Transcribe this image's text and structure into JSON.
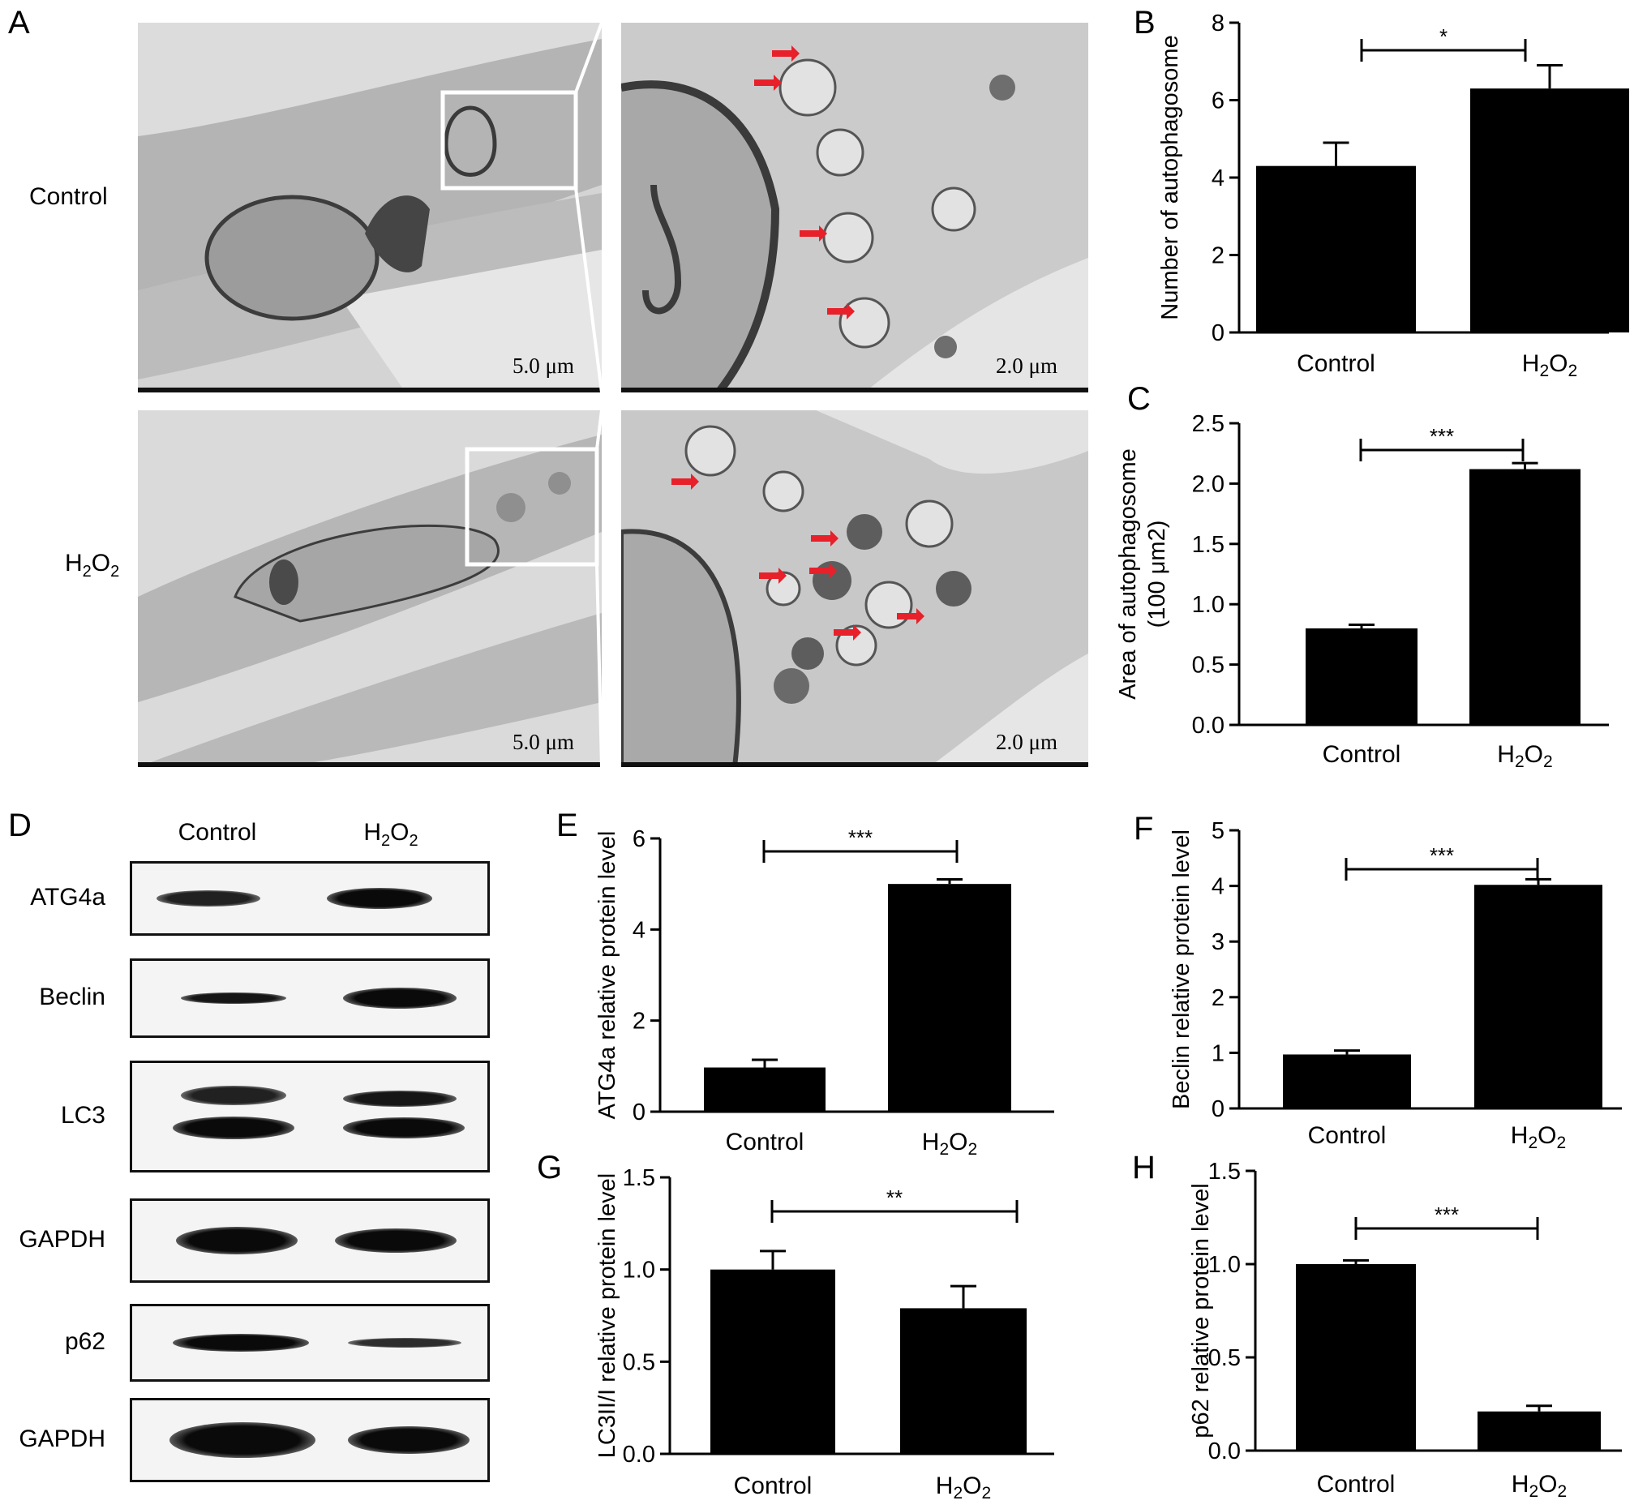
{
  "panels": {
    "A": "A",
    "B": "B",
    "C": "C",
    "D": "D",
    "E": "E",
    "F": "F",
    "G": "G",
    "H": "H"
  },
  "em": {
    "row_labels": [
      "Control",
      "H2O2"
    ],
    "scale_low": "5.0 μm",
    "scale_high": "2.0 μm",
    "arrow_color": "#e8202a"
  },
  "blot": {
    "col_labels": [
      "Control",
      "H2O2"
    ],
    "rows": [
      "ATG4a",
      "Beclin",
      "LC3",
      "GAPDH",
      "p62",
      "GAPDH"
    ]
  },
  "chart_data": [
    {
      "panel": "B",
      "type": "bar",
      "categories": [
        "Control",
        "H2O2"
      ],
      "values": [
        4.3,
        6.3
      ],
      "errors": [
        0.6,
        0.6
      ],
      "ylabel": [
        "Number of autophagosome"
      ],
      "ylim": [
        0,
        8
      ],
      "yticks": [
        "0",
        "2",
        "4",
        "6",
        "8"
      ],
      "significance": "*"
    },
    {
      "panel": "C",
      "type": "bar",
      "categories": [
        "Control",
        "H2O2"
      ],
      "values": [
        0.8,
        2.12
      ],
      "errors": [
        0.03,
        0.05
      ],
      "ylabel": [
        "Area of autophagosome",
        "(100 μm2)"
      ],
      "ylim": [
        0,
        2.5
      ],
      "yticks": [
        "0.0",
        "0.5",
        "1.0",
        "1.5",
        "2.0",
        "2.5"
      ],
      "significance": "***"
    },
    {
      "panel": "E",
      "type": "bar",
      "categories": [
        "Control",
        "H2O2"
      ],
      "values": [
        0.97,
        5.0
      ],
      "errors": [
        0.17,
        0.1
      ],
      "ylabel": [
        "ATG4a relative protein level"
      ],
      "ylim": [
        0,
        6
      ],
      "yticks": [
        "0",
        "2",
        "4",
        "6"
      ],
      "significance": "***"
    },
    {
      "panel": "F",
      "type": "bar",
      "categories": [
        "Control",
        "H2O2"
      ],
      "values": [
        0.97,
        4.02
      ],
      "errors": [
        0.07,
        0.1
      ],
      "ylabel": [
        "Beclin relative protein level"
      ],
      "ylim": [
        0,
        5
      ],
      "yticks": [
        "0",
        "1",
        "2",
        "3",
        "4",
        "5"
      ],
      "significance": "***"
    },
    {
      "panel": "G",
      "type": "bar",
      "categories": [
        "Control",
        "H2O2"
      ],
      "values": [
        1.0,
        0.79
      ],
      "errors": [
        0.1,
        0.12
      ],
      "ylabel": [
        "LC3II/I relative protein level"
      ],
      "ylim": [
        0,
        1.5
      ],
      "yticks": [
        "0.0",
        "0.5",
        "1.0",
        "1.5"
      ],
      "significance": "**"
    },
    {
      "panel": "H",
      "type": "bar",
      "categories": [
        "Control",
        "H2O2"
      ],
      "values": [
        1.0,
        0.21
      ],
      "errors": [
        0.02,
        0.03
      ],
      "ylabel": [
        "p62 relative protein level"
      ],
      "ylim": [
        0,
        1.5
      ],
      "yticks": [
        "0.0",
        "0.5",
        "1.0",
        "1.5"
      ],
      "significance": "***"
    }
  ]
}
